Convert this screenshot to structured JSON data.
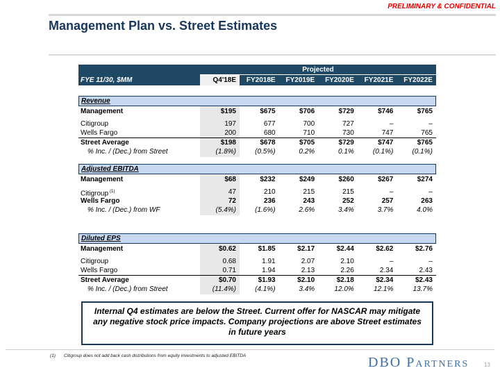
{
  "header": {
    "confidential": "PRELIMINARY & CONFIDENTIAL",
    "title": "Management Plan vs. Street Estimates"
  },
  "colors": {
    "header_navy": "#1f4864",
    "title_navy": "#17375d",
    "section_band_blue": "#c6d9f0",
    "q4_stripe_gray": "#e8e8e8",
    "alert_red": "#e60000",
    "logo_blue": "#3c6fa5"
  },
  "table": {
    "projected_label": "Projected",
    "fye_label": "FYE 11/30, $MM",
    "columns": [
      "Q4'18E",
      "FY2018E",
      "FY2019E",
      "FY2020E",
      "FY2021E",
      "FY2022E"
    ],
    "sections": [
      {
        "title": "Revenue",
        "rows": [
          {
            "label": "Management",
            "values": [
              "$195",
              "$675",
              "$706",
              "$729",
              "$746",
              "$765"
            ]
          },
          {
            "label": "Citigroup",
            "values": [
              "197",
              "677",
              "700",
              "727",
              "–",
              "–"
            ]
          },
          {
            "label": "Wells Fargo",
            "values": [
              "200",
              "680",
              "710",
              "730",
              "747",
              "765"
            ]
          },
          {
            "label": "Street Average",
            "values": [
              "$198",
              "$678",
              "$705",
              "$729",
              "$747",
              "$765"
            ]
          },
          {
            "label": "% Inc. / (Dec.) from Street",
            "values": [
              "(1.8%)",
              "(0.5%)",
              "0.2%",
              "0.1%",
              "(0.1%)",
              "(0.1%)"
            ]
          }
        ]
      },
      {
        "title": "Adjusted EBITDA",
        "rows": [
          {
            "label": "Management",
            "values": [
              "$68",
              "$232",
              "$249",
              "$260",
              "$267",
              "$274"
            ]
          },
          {
            "label": "Citigroup",
            "sup": "(1)",
            "values": [
              "47",
              "210",
              "215",
              "215",
              "–",
              "–"
            ]
          },
          {
            "label": "Wells Fargo",
            "values": [
              "72",
              "236",
              "243",
              "252",
              "257",
              "263"
            ]
          },
          {
            "label": "% Inc. / (Dec.) from WF",
            "values": [
              "(5.4%)",
              "(1.6%)",
              "2.6%",
              "3.4%",
              "3.7%",
              "4.0%"
            ]
          }
        ]
      },
      {
        "title": "Diluted EPS",
        "rows": [
          {
            "label": "Management",
            "values": [
              "$0.62",
              "$1.85",
              "$2.17",
              "$2.44",
              "$2.62",
              "$2.76"
            ]
          },
          {
            "label": "Citigroup",
            "values": [
              "0.68",
              "1.91",
              "2.07",
              "2.10",
              "–",
              "–"
            ]
          },
          {
            "label": "Wells Fargo",
            "values": [
              "0.71",
              "1.94",
              "2.13",
              "2.26",
              "2.34",
              "2.43"
            ]
          },
          {
            "label": "Street Average",
            "values": [
              "$0.70",
              "$1.93",
              "$2.10",
              "$2.18",
              "$2.34",
              "$2.43"
            ]
          },
          {
            "label": "% Inc. / (Dec.) from Street",
            "values": [
              "(11.4%)",
              "(4.1%)",
              "3.4%",
              "12.0%",
              "12.1%",
              "13.7%"
            ]
          }
        ]
      }
    ]
  },
  "callout": {
    "text": "Internal Q4 estimates are below the Street. Current offer for NASCAR may mitigate any negative stock price impacts. Company projections are above Street estimates in future years"
  },
  "footnote": {
    "marker": "(1)",
    "text": "Citigroup does not add back cash distributions from equity investments to adjusted EBITDA"
  },
  "footer": {
    "logo": "DBO Partners",
    "page_number": "13"
  }
}
